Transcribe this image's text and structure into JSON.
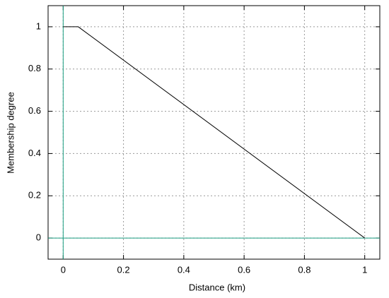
{
  "chart_data": {
    "type": "line",
    "xlabel": "Distance (km)",
    "ylabel": "Membership degree",
    "x": [
      0,
      0.05,
      1
    ],
    "series": [
      {
        "color": "#000000",
        "values": [
          1,
          1,
          0
        ]
      }
    ],
    "xlim": [
      -0.05,
      1.05
    ],
    "ylim": [
      -0.1,
      1.1
    ],
    "xticks": [
      0,
      0.2,
      0.4,
      0.6,
      0.8,
      1
    ],
    "yticks": [
      0,
      0.2,
      0.4,
      0.6,
      0.8,
      1
    ],
    "grid": true,
    "zero_axes": true,
    "zero_axis_color": "#1a9e80"
  }
}
